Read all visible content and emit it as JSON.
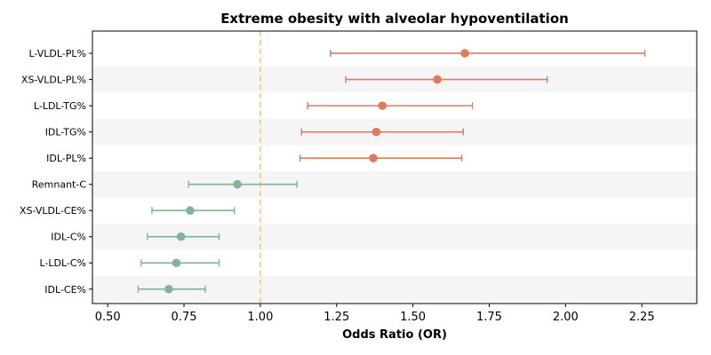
{
  "chart_data": {
    "type": "forest",
    "title": "Extreme obesity with alveolar hypoventilation",
    "xlabel": "Odds Ratio (OR)",
    "ylabel": "",
    "xlim": [
      0.45,
      2.43
    ],
    "xticks": [
      0.5,
      0.75,
      1.0,
      1.25,
      1.5,
      1.75,
      2.0,
      2.25
    ],
    "xtick_labels": [
      "0.50",
      "0.75",
      "1.00",
      "1.25",
      "1.50",
      "1.75",
      "2.00",
      "2.25"
    ],
    "reference_line": {
      "x": 1.0,
      "style": "dashed",
      "color": "#f2c77e"
    },
    "row_striping": true,
    "grid": false,
    "colors": {
      "risk": "#e07a5f",
      "protective": "#81b29a",
      "stripe": "#f5f5f5"
    },
    "items": [
      {
        "label": "L-VLDL-PL%",
        "or": 1.67,
        "ci_low": 1.23,
        "ci_high": 2.26,
        "group": "risk"
      },
      {
        "label": "XS-VLDL-PL%",
        "or": 1.58,
        "ci_low": 1.28,
        "ci_high": 1.94,
        "group": "risk"
      },
      {
        "label": "L-LDL-TG%",
        "or": 1.4,
        "ci_low": 1.155,
        "ci_high": 1.695,
        "group": "risk"
      },
      {
        "label": "IDL-TG%",
        "or": 1.38,
        "ci_low": 1.135,
        "ci_high": 1.665,
        "group": "risk"
      },
      {
        "label": "IDL-PL%",
        "or": 1.37,
        "ci_low": 1.13,
        "ci_high": 1.66,
        "group": "risk"
      },
      {
        "label": "Remnant-C",
        "or": 0.925,
        "ci_low": 0.765,
        "ci_high": 1.12,
        "group": "protective"
      },
      {
        "label": "XS-VLDL-CE%",
        "or": 0.77,
        "ci_low": 0.645,
        "ci_high": 0.915,
        "group": "protective"
      },
      {
        "label": "IDL-C%",
        "or": 0.74,
        "ci_low": 0.63,
        "ci_high": 0.865,
        "group": "protective"
      },
      {
        "label": "L-LDL-C%",
        "or": 0.725,
        "ci_low": 0.61,
        "ci_high": 0.865,
        "group": "protective"
      },
      {
        "label": "IDL-CE%",
        "or": 0.7,
        "ci_low": 0.6,
        "ci_high": 0.82,
        "group": "protective"
      }
    ]
  }
}
